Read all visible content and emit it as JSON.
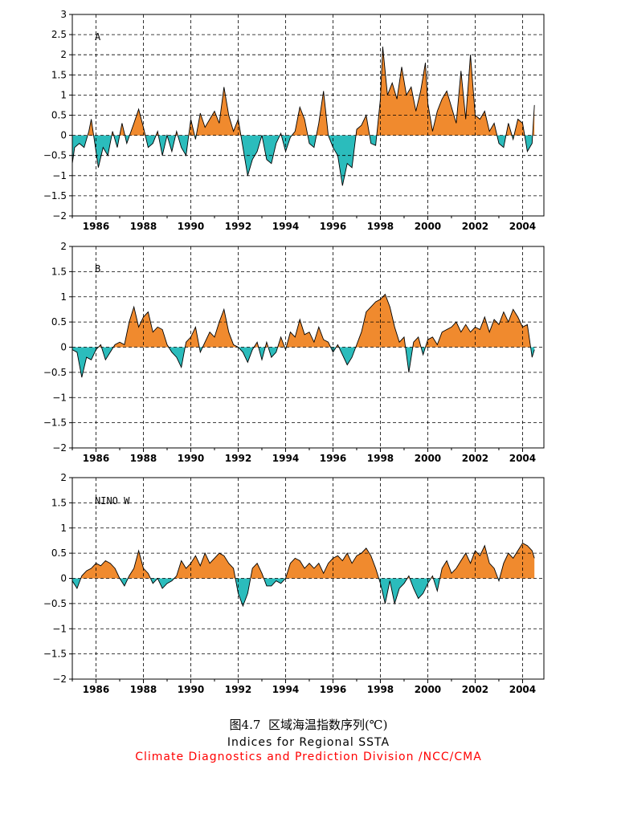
{
  "colors": {
    "positive_fill": "#f08a2e",
    "negative_fill": "#2bbcbc",
    "credit_text": "#ff0000",
    "line": "#000000"
  },
  "caption": {
    "figure_title": "图4.7  区域海温指数序列(℃)",
    "english_title": "Indices for Regional SSTA",
    "credit": "Climate Diagnostics and Prediction Division /NCC/CMA"
  },
  "chart_data": [
    {
      "type": "area",
      "panel_label": "A",
      "xlim": [
        1985.0,
        2004.9
      ],
      "ylim": [
        -2,
        3
      ],
      "yticks": [
        -2,
        -1.5,
        -1,
        -0.5,
        0,
        0.5,
        1,
        1.5,
        2,
        2.5,
        3
      ],
      "xticks": [
        1986,
        1988,
        1990,
        1992,
        1994,
        1996,
        1998,
        2000,
        2002,
        2004
      ],
      "grid": true,
      "x": [
        1985.0,
        1985.1,
        1985.3,
        1985.5,
        1985.7,
        1985.8,
        1986.0,
        1986.1,
        1986.3,
        1986.5,
        1986.7,
        1986.9,
        1987.1,
        1987.3,
        1987.6,
        1987.8,
        1988.0,
        1988.2,
        1988.4,
        1988.6,
        1988.8,
        1989.0,
        1989.2,
        1989.4,
        1989.6,
        1989.8,
        1990.0,
        1990.2,
        1990.4,
        1990.6,
        1990.8,
        1991.0,
        1991.2,
        1991.4,
        1991.6,
        1991.8,
        1992.0,
        1992.2,
        1992.4,
        1992.6,
        1992.8,
        1993.0,
        1993.2,
        1993.4,
        1993.6,
        1993.8,
        1994.0,
        1994.2,
        1994.4,
        1994.6,
        1994.8,
        1995.0,
        1995.2,
        1995.4,
        1995.6,
        1995.8,
        1996.0,
        1996.2,
        1996.4,
        1996.6,
        1996.8,
        1997.0,
        1997.2,
        1997.4,
        1997.6,
        1997.8,
        1998.0,
        1998.1,
        1998.3,
        1998.5,
        1998.7,
        1998.9,
        1999.1,
        1999.3,
        1999.5,
        1999.7,
        1999.9,
        2000.0,
        2000.2,
        2000.4,
        2000.6,
        2000.8,
        2001.0,
        2001.2,
        2001.4,
        2001.6,
        2001.8,
        2002.0,
        2002.2,
        2002.4,
        2002.6,
        2002.8,
        2003.0,
        2003.2,
        2003.4,
        2003.6,
        2003.8,
        2004.0,
        2004.2,
        2004.4,
        2004.5
      ],
      "values": [
        -0.7,
        -0.3,
        -0.2,
        -0.3,
        0.1,
        0.4,
        -0.4,
        -0.8,
        -0.3,
        -0.5,
        0.1,
        -0.3,
        0.3,
        -0.2,
        0.3,
        0.65,
        0.2,
        -0.3,
        -0.2,
        0.1,
        -0.5,
        0.0,
        -0.4,
        0.1,
        -0.3,
        -0.5,
        0.4,
        -0.1,
        0.55,
        0.2,
        0.4,
        0.6,
        0.3,
        1.2,
        0.5,
        0.1,
        0.4,
        -0.3,
        -1.0,
        -0.6,
        -0.4,
        0.0,
        -0.6,
        -0.7,
        -0.2,
        0.05,
        -0.4,
        -0.05,
        0.1,
        0.7,
        0.4,
        -0.2,
        -0.3,
        0.3,
        1.1,
        0.0,
        -0.3,
        -0.5,
        -1.25,
        -0.7,
        -0.8,
        0.15,
        0.25,
        0.5,
        -0.2,
        -0.25,
        0.9,
        2.2,
        1.0,
        1.3,
        0.9,
        1.7,
        1.0,
        1.2,
        0.6,
        1.1,
        1.8,
        0.8,
        0.1,
        0.6,
        0.9,
        1.1,
        0.7,
        0.3,
        1.6,
        0.4,
        2.0,
        0.5,
        0.4,
        0.6,
        0.1,
        0.3,
        -0.2,
        -0.3,
        0.3,
        -0.1,
        0.4,
        0.3,
        -0.4,
        -0.2,
        0.75
      ]
    },
    {
      "type": "area",
      "panel_label": "B",
      "xlim": [
        1985.0,
        2004.9
      ],
      "ylim": [
        -2,
        2
      ],
      "yticks": [
        -2,
        -1.5,
        -1,
        -0.5,
        0,
        0.5,
        1,
        1.5,
        2
      ],
      "xticks": [
        1986,
        1988,
        1990,
        1992,
        1994,
        1996,
        1998,
        2000,
        2002,
        2004
      ],
      "grid": true,
      "x": [
        1985.0,
        1985.2,
        1985.4,
        1985.6,
        1985.8,
        1986.0,
        1986.2,
        1986.4,
        1986.6,
        1986.8,
        1987.0,
        1987.2,
        1987.4,
        1987.6,
        1987.8,
        1988.0,
        1988.2,
        1988.4,
        1988.6,
        1988.8,
        1989.0,
        1989.2,
        1989.4,
        1989.6,
        1989.8,
        1990.0,
        1990.2,
        1990.4,
        1990.6,
        1990.8,
        1991.0,
        1991.2,
        1991.4,
        1991.6,
        1991.8,
        1992.0,
        1992.2,
        1992.4,
        1992.6,
        1992.8,
        1993.0,
        1993.2,
        1993.4,
        1993.6,
        1993.8,
        1994.0,
        1994.2,
        1994.4,
        1994.6,
        1994.8,
        1995.0,
        1995.2,
        1995.4,
        1995.6,
        1995.8,
        1996.0,
        1996.2,
        1996.4,
        1996.6,
        1996.8,
        1997.0,
        1997.2,
        1997.4,
        1997.6,
        1997.8,
        1998.0,
        1998.2,
        1998.4,
        1998.6,
        1998.8,
        1999.0,
        1999.2,
        1999.4,
        1999.6,
        1999.8,
        2000.0,
        2000.2,
        2000.4,
        2000.6,
        2000.8,
        2001.0,
        2001.2,
        2001.4,
        2001.6,
        2001.8,
        2002.0,
        2002.2,
        2002.4,
        2002.6,
        2002.8,
        2003.0,
        2003.2,
        2003.4,
        2003.6,
        2003.8,
        2004.0,
        2004.2,
        2004.4,
        2004.5
      ],
      "values": [
        -0.05,
        -0.1,
        -0.6,
        -0.2,
        -0.25,
        -0.05,
        0.05,
        -0.25,
        -0.1,
        0.05,
        0.1,
        0.05,
        0.5,
        0.8,
        0.4,
        0.6,
        0.7,
        0.3,
        0.4,
        0.35,
        0.05,
        -0.1,
        -0.2,
        -0.4,
        0.1,
        0.2,
        0.4,
        -0.1,
        0.1,
        0.3,
        0.2,
        0.5,
        0.75,
        0.3,
        0.05,
        0.0,
        -0.1,
        -0.3,
        -0.05,
        0.1,
        -0.25,
        0.1,
        -0.2,
        -0.1,
        0.2,
        -0.05,
        0.3,
        0.2,
        0.55,
        0.25,
        0.3,
        0.1,
        0.4,
        0.15,
        0.1,
        -0.1,
        0.05,
        -0.15,
        -0.35,
        -0.2,
        0.05,
        0.3,
        0.7,
        0.8,
        0.9,
        0.95,
        1.05,
        0.8,
        0.4,
        0.1,
        0.2,
        -0.5,
        0.1,
        0.2,
        -0.15,
        0.15,
        0.2,
        0.05,
        0.3,
        0.35,
        0.4,
        0.5,
        0.3,
        0.45,
        0.3,
        0.4,
        0.35,
        0.6,
        0.3,
        0.55,
        0.45,
        0.7,
        0.5,
        0.75,
        0.6,
        0.4,
        0.45,
        -0.2,
        -0.05
      ]
    },
    {
      "type": "area",
      "panel_label": "NINO W",
      "xlim": [
        1985.0,
        2004.9
      ],
      "ylim": [
        -2,
        2
      ],
      "yticks": [
        -2,
        -1.5,
        -1,
        -0.5,
        0,
        0.5,
        1,
        1.5,
        2
      ],
      "xticks": [
        1986,
        1988,
        1990,
        1992,
        1994,
        1996,
        1998,
        2000,
        2002,
        2004
      ],
      "grid": true,
      "x": [
        1985.0,
        1985.2,
        1985.4,
        1985.6,
        1985.8,
        1986.0,
        1986.2,
        1986.4,
        1986.6,
        1986.8,
        1987.0,
        1987.2,
        1987.4,
        1987.6,
        1987.8,
        1988.0,
        1988.2,
        1988.4,
        1988.6,
        1988.8,
        1989.0,
        1989.2,
        1989.4,
        1989.6,
        1989.8,
        1990.0,
        1990.2,
        1990.4,
        1990.6,
        1990.8,
        1991.0,
        1991.2,
        1991.4,
        1991.6,
        1991.8,
        1992.0,
        1992.2,
        1992.4,
        1992.6,
        1992.8,
        1993.0,
        1993.2,
        1993.4,
        1993.6,
        1993.8,
        1994.0,
        1994.2,
        1994.4,
        1994.6,
        1994.8,
        1995.0,
        1995.2,
        1995.4,
        1995.6,
        1995.8,
        1996.0,
        1996.2,
        1996.4,
        1996.6,
        1996.8,
        1997.0,
        1997.2,
        1997.4,
        1997.6,
        1997.8,
        1998.0,
        1998.2,
        1998.4,
        1998.6,
        1998.8,
        1999.0,
        1999.2,
        1999.4,
        1999.6,
        1999.8,
        2000.0,
        2000.2,
        2000.4,
        2000.6,
        2000.8,
        2001.0,
        2001.2,
        2001.4,
        2001.6,
        2001.8,
        2002.0,
        2002.2,
        2002.4,
        2002.6,
        2002.8,
        2003.0,
        2003.2,
        2003.4,
        2003.6,
        2003.8,
        2004.0,
        2004.2,
        2004.4,
        2004.5
      ],
      "values": [
        -0.05,
        -0.2,
        0.05,
        0.15,
        0.2,
        0.3,
        0.25,
        0.35,
        0.3,
        0.2,
        0.0,
        -0.15,
        0.05,
        0.2,
        0.55,
        0.2,
        0.1,
        -0.1,
        0.0,
        -0.2,
        -0.1,
        -0.05,
        0.05,
        0.35,
        0.2,
        0.3,
        0.45,
        0.25,
        0.5,
        0.3,
        0.4,
        0.5,
        0.45,
        0.3,
        0.2,
        -0.3,
        -0.55,
        -0.3,
        0.2,
        0.3,
        0.1,
        -0.15,
        -0.15,
        -0.05,
        -0.1,
        0.0,
        0.3,
        0.4,
        0.35,
        0.2,
        0.3,
        0.2,
        0.3,
        0.1,
        0.3,
        0.4,
        0.45,
        0.35,
        0.5,
        0.3,
        0.45,
        0.5,
        0.6,
        0.45,
        0.2,
        -0.1,
        -0.5,
        -0.05,
        -0.5,
        -0.2,
        -0.1,
        0.05,
        -0.2,
        -0.4,
        -0.3,
        -0.1,
        0.05,
        -0.25,
        0.2,
        0.35,
        0.1,
        0.2,
        0.35,
        0.5,
        0.3,
        0.55,
        0.45,
        0.65,
        0.3,
        0.2,
        -0.05,
        0.3,
        0.5,
        0.4,
        0.55,
        0.7,
        0.65,
        0.55,
        0.4
      ]
    }
  ]
}
